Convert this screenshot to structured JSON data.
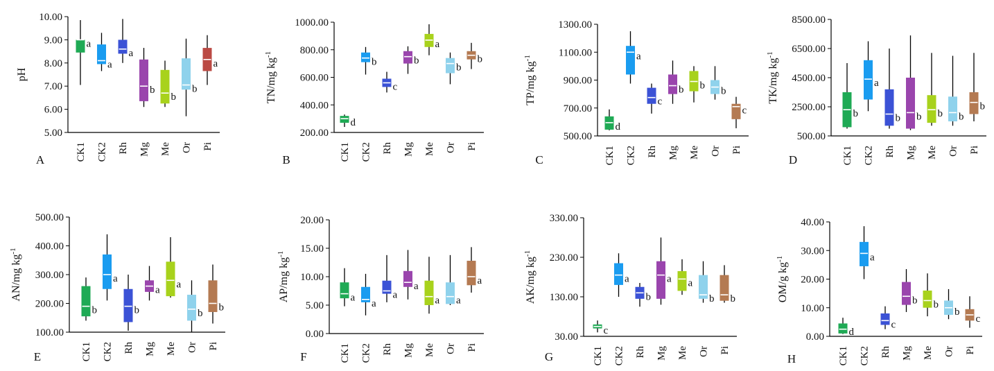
{
  "figure": {
    "palette": [
      "#1faa55",
      "#1a9cf0",
      "#3b52d6",
      "#9a45ad",
      "#a8d21c",
      "#8fd2ec",
      "#b47a52"
    ],
    "palette_alt": {
      "A": [
        "#1faa55",
        "#1a9cf0",
        "#3b52d6",
        "#9a45ad",
        "#a8d21c",
        "#8fd2ec",
        "#bb4a44"
      ]
    }
  },
  "chart_data": [
    {
      "type": "box",
      "panel_label": "A",
      "ylabel": "pH",
      "ylim": [
        5.0,
        10.0
      ],
      "yticks": [
        "5.00",
        "6.00",
        "7.00",
        "8.00",
        "9.00",
        "10.00"
      ],
      "categories": [
        "CK1",
        "CK2",
        "Rh",
        "Mg",
        "Me",
        "Or",
        "Pi"
      ],
      "boxes": [
        {
          "min": 7.05,
          "q1": 8.45,
          "median": 9.0,
          "q3": 9.0,
          "max": 9.85,
          "sig": "a"
        },
        {
          "min": 7.65,
          "q1": 7.95,
          "median": 8.1,
          "q3": 8.8,
          "max": 9.3,
          "sig": "a"
        },
        {
          "min": 8.0,
          "q1": 8.4,
          "median": 8.6,
          "q3": 9.0,
          "max": 9.9,
          "sig": "a"
        },
        {
          "min": 6.1,
          "q1": 6.35,
          "median": 7.0,
          "q3": 8.15,
          "max": 8.65,
          "sig": "b"
        },
        {
          "min": 6.1,
          "q1": 6.25,
          "median": 6.7,
          "q3": 7.7,
          "max": 8.1,
          "sig": "b"
        },
        {
          "min": 5.7,
          "q1": 6.85,
          "median": 7.05,
          "q3": 8.2,
          "max": 9.05,
          "sig": "b"
        },
        {
          "min": 7.05,
          "q1": 7.65,
          "median": 8.15,
          "q3": 8.65,
          "max": 9.2,
          "sig": "a"
        }
      ]
    },
    {
      "type": "box",
      "panel_label": "B",
      "ylabel": "TN/mg kg",
      "ylabel_sup": "-1",
      "ylim": [
        200.0,
        1000.0
      ],
      "yticks": [
        "200.00",
        "400.00",
        "600.00",
        "800.00",
        "1000.00"
      ],
      "categories": [
        "CK1",
        "CK2",
        "Rh",
        "Mg",
        "Me",
        "Or",
        "Pi"
      ],
      "boxes": [
        {
          "min": 240,
          "q1": 270,
          "median": 300,
          "q3": 320,
          "max": 330,
          "sig": "d"
        },
        {
          "min": 620,
          "q1": 710,
          "median": 740,
          "q3": 780,
          "max": 820,
          "sig": "b"
        },
        {
          "min": 490,
          "q1": 530,
          "median": 560,
          "q3": 590,
          "max": 640,
          "sig": "c"
        },
        {
          "min": 625,
          "q1": 700,
          "median": 750,
          "q3": 790,
          "max": 825,
          "sig": "b"
        },
        {
          "min": 760,
          "q1": 820,
          "median": 870,
          "q3": 915,
          "max": 985,
          "sig": "a"
        },
        {
          "min": 550,
          "q1": 630,
          "median": 700,
          "q3": 740,
          "max": 780,
          "sig": "b"
        },
        {
          "min": 660,
          "q1": 730,
          "median": 760,
          "q3": 790,
          "max": 850,
          "sig": "b"
        }
      ]
    },
    {
      "type": "box",
      "panel_label": "C",
      "ylabel": "TP/mg kg",
      "ylabel_sup": "-1",
      "ylim": [
        500.0,
        1300.0
      ],
      "yticks": [
        "500.00",
        "700.00",
        "900.00",
        "1100.00",
        "1300.00"
      ],
      "categories": [
        "CK1",
        "CK2",
        "Rh",
        "Mg",
        "Me",
        "Or",
        "Pi"
      ],
      "boxes": [
        {
          "min": 540,
          "q1": 545,
          "median": 595,
          "q3": 640,
          "max": 690,
          "sig": "d"
        },
        {
          "min": 875,
          "q1": 940,
          "median": 1100,
          "q3": 1145,
          "max": 1250,
          "sig": "a"
        },
        {
          "min": 660,
          "q1": 730,
          "median": 775,
          "q3": 845,
          "max": 875,
          "sig": "c"
        },
        {
          "min": 730,
          "q1": 800,
          "median": 860,
          "q3": 940,
          "max": 1040,
          "sig": "b"
        },
        {
          "min": 740,
          "q1": 820,
          "median": 890,
          "q3": 965,
          "max": 1000,
          "sig": "b"
        },
        {
          "min": 760,
          "q1": 800,
          "median": 850,
          "q3": 900,
          "max": 1000,
          "sig": "b"
        },
        {
          "min": 555,
          "q1": 620,
          "median": 710,
          "q3": 730,
          "max": 780,
          "sig": "c"
        }
      ]
    },
    {
      "type": "box",
      "panel_label": "D",
      "ylabel": "TK/mg kg",
      "ylabel_sup": "-1",
      "ylim": [
        500.0,
        8500.0
      ],
      "yticks": [
        "500.00",
        "2500.00",
        "4500.00",
        "6500.00",
        "8500.00"
      ],
      "categories": [
        "CK1",
        "CK2",
        "Rh",
        "Mg",
        "Me",
        "Or",
        "Pi"
      ],
      "boxes": [
        {
          "min": 1000,
          "q1": 1100,
          "median": 2300,
          "q3": 3500,
          "max": 5500,
          "sig": "b"
        },
        {
          "min": 2200,
          "q1": 3000,
          "median": 4400,
          "q3": 5700,
          "max": 7000,
          "sig": "a"
        },
        {
          "min": 1000,
          "q1": 1200,
          "median": 2000,
          "q3": 3700,
          "max": 6500,
          "sig": "b"
        },
        {
          "min": 900,
          "q1": 1000,
          "median": 2100,
          "q3": 4500,
          "max": 7400,
          "sig": "b"
        },
        {
          "min": 1200,
          "q1": 1400,
          "median": 2300,
          "q3": 3300,
          "max": 6200,
          "sig": "b"
        },
        {
          "min": 1200,
          "q1": 1500,
          "median": 2100,
          "q3": 3200,
          "max": 6000,
          "sig": "b"
        },
        {
          "min": 1500,
          "q1": 2000,
          "median": 2800,
          "q3": 3500,
          "max": 6200,
          "sig": "b"
        }
      ]
    },
    {
      "type": "box",
      "panel_label": "E",
      "ylabel": "AN/mg kg",
      "ylabel_sup": "-1",
      "ylim": [
        100.0,
        500.0
      ],
      "yticks": [
        "100.00",
        "200.00",
        "300.00",
        "400.00",
        "500.00"
      ],
      "categories": [
        "CK1",
        "CK2",
        "Rh",
        "Mg",
        "Me",
        "Or",
        "Pi"
      ],
      "boxes": [
        {
          "min": 140,
          "q1": 155,
          "median": 190,
          "q3": 260,
          "max": 290,
          "sig": "b"
        },
        {
          "min": 210,
          "q1": 250,
          "median": 300,
          "q3": 370,
          "max": 440,
          "sig": "a"
        },
        {
          "min": 105,
          "q1": 135,
          "median": 190,
          "q3": 250,
          "max": 300,
          "sig": "b"
        },
        {
          "min": 210,
          "q1": 240,
          "median": 260,
          "q3": 280,
          "max": 330,
          "sig": "a"
        },
        {
          "min": 220,
          "q1": 225,
          "median": 280,
          "q3": 345,
          "max": 430,
          "sig": "a"
        },
        {
          "min": 100,
          "q1": 140,
          "median": 180,
          "q3": 230,
          "max": 280,
          "sig": "b"
        },
        {
          "min": 130,
          "q1": 170,
          "median": 200,
          "q3": 280,
          "max": 335,
          "sig": "b"
        }
      ]
    },
    {
      "type": "box",
      "panel_label": "F",
      "ylabel": "AP/mg kg",
      "ylabel_sup": "-1",
      "ylim": [
        0.0,
        20.0
      ],
      "yticks": [
        "0.00",
        "5.00",
        "10.00",
        "15.00",
        "20.00"
      ],
      "categories": [
        "CK1",
        "CK2",
        "Rh",
        "Mg",
        "Me",
        "Or",
        "Pi"
      ],
      "boxes": [
        {
          "min": 4.8,
          "q1": 6.2,
          "median": 7.0,
          "q3": 9.0,
          "max": 11.5,
          "sig": "a"
        },
        {
          "min": 3.2,
          "q1": 5.5,
          "median": 6.0,
          "q3": 8.2,
          "max": 10.5,
          "sig": "a"
        },
        {
          "min": 5.5,
          "q1": 7.0,
          "median": 7.5,
          "q3": 9.3,
          "max": 13.8,
          "sig": "a"
        },
        {
          "min": 6.0,
          "q1": 8.2,
          "median": 9.0,
          "q3": 11.0,
          "max": 14.7,
          "sig": "a"
        },
        {
          "min": 3.5,
          "q1": 5.0,
          "median": 6.5,
          "q3": 9.3,
          "max": 13.5,
          "sig": "a"
        },
        {
          "min": 5.0,
          "q1": 5.2,
          "median": 6.5,
          "q3": 9.0,
          "max": 13.8,
          "sig": "a"
        },
        {
          "min": 7.2,
          "q1": 8.5,
          "median": 10.0,
          "q3": 12.8,
          "max": 15.2,
          "sig": "a"
        }
      ]
    },
    {
      "type": "box",
      "panel_label": "G",
      "ylabel": "AK/mg kg",
      "ylabel_sup": "-1",
      "ylim": [
        30.0,
        330.0
      ],
      "yticks": [
        "30.00",
        "130.00",
        "230.00",
        "330.00"
      ],
      "categories": [
        "CK1",
        "CK2",
        "Rh",
        "Mg",
        "Me",
        "Or",
        "Pi"
      ],
      "boxes": [
        {
          "min": 40,
          "q1": 50,
          "median": 55,
          "q3": 60,
          "max": 70,
          "sig": "c"
        },
        {
          "min": 130,
          "q1": 160,
          "median": 185,
          "q3": 215,
          "max": 240,
          "sig": "a"
        },
        {
          "min": 105,
          "q1": 125,
          "median": 140,
          "q3": 155,
          "max": 165,
          "sig": "b"
        },
        {
          "min": 110,
          "q1": 125,
          "median": 185,
          "q3": 220,
          "max": 280,
          "sig": "a"
        },
        {
          "min": 135,
          "q1": 145,
          "median": 175,
          "q3": 195,
          "max": 225,
          "sig": "a"
        },
        {
          "min": 115,
          "q1": 125,
          "median": 135,
          "q3": 185,
          "max": 220,
          "sig": "b"
        },
        {
          "min": 115,
          "q1": 120,
          "median": 135,
          "q3": 185,
          "max": 210,
          "sig": "b"
        }
      ]
    },
    {
      "type": "box",
      "panel_label": "H",
      "ylabel": "OM/g kg",
      "ylabel_sup": "-1",
      "ylim": [
        0.0,
        40.0
      ],
      "yticks": [
        "0.00",
        "10.00",
        "20.00",
        "30.00",
        "40.00"
      ],
      "categories": [
        "CK1",
        "CK2",
        "Rh",
        "Mg",
        "Me",
        "Or",
        "Pi"
      ],
      "boxes": [
        {
          "min": 0.8,
          "q1": 1.0,
          "median": 2.5,
          "q3": 4.5,
          "max": 6.5,
          "sig": "d"
        },
        {
          "min": 20.0,
          "q1": 24.5,
          "median": 29.0,
          "q3": 33.0,
          "max": 38.5,
          "sig": "a"
        },
        {
          "min": 2.5,
          "q1": 4.0,
          "median": 5.5,
          "q3": 8.0,
          "max": 10.5,
          "sig": "c"
        },
        {
          "min": 8.5,
          "q1": 11.0,
          "median": 14.0,
          "q3": 19.0,
          "max": 23.5,
          "sig": "b"
        },
        {
          "min": 7.0,
          "q1": 10.0,
          "median": 12.5,
          "q3": 16.0,
          "max": 22.0,
          "sig": "b"
        },
        {
          "min": 6.0,
          "q1": 7.5,
          "median": 10.0,
          "q3": 12.5,
          "max": 16.5,
          "sig": "b"
        },
        {
          "min": 3.0,
          "q1": 5.5,
          "median": 7.5,
          "q3": 9.5,
          "max": 14.0,
          "sig": "c"
        }
      ]
    }
  ]
}
